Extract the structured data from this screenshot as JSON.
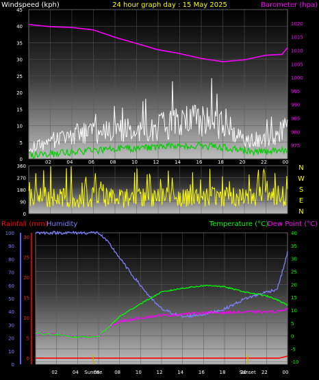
{
  "header": {
    "windspeed_label": "Windspeed (kph)",
    "title": "24 hour graph day : 15 May 2025",
    "barometer_label": "Barometer (hpa)"
  },
  "wind_dir_labels": [
    "N",
    "W",
    "S",
    "E",
    "N"
  ],
  "bottom_header": {
    "rainfall_label": "Rainfall (mm)",
    "humidity_label": "Humidity",
    "temperature_label": "Temperature (°C)",
    "dewpoint_label": "Dew Point (°C)"
  },
  "sun_labels": {
    "sunrise": "Sunrise",
    "sunset": "Sunset"
  },
  "colors": {
    "wind_avg": "#00d000",
    "wind_gust": "#ffffff",
    "barometer": "#ff00ff",
    "wind_dir": "#ffff00",
    "rain": "#ff0000",
    "humidity": "#8080ff",
    "temperature": "#00ff00",
    "dewpoint": "#ff00ff",
    "sun_marker": "#c8b400"
  },
  "chart_data": [
    {
      "type": "line",
      "x_ticks": [
        "02",
        "04",
        "06",
        "08",
        "10",
        "12",
        "14",
        "16",
        "18",
        "20",
        "22",
        "00"
      ],
      "left_axis": {
        "ticks": [
          0,
          5,
          10,
          15,
          20,
          25,
          30,
          35,
          40,
          45
        ],
        "ylim": [
          0,
          45
        ],
        "label": "Windspeed (kph)"
      },
      "right_axis": {
        "ticks": [
          975,
          980,
          985,
          990,
          995,
          1000,
          1005,
          1010,
          1015,
          1020
        ],
        "ylim": [
          970,
          1025
        ],
        "label": "Barometer (hpa)"
      },
      "series": [
        {
          "name": "Barometer (hpa)",
          "x": [
            0,
            2,
            4,
            6,
            8,
            10,
            12,
            14,
            16,
            18,
            20,
            22,
            23.5,
            24
          ],
          "values": [
            1019.5,
            1018.7,
            1018.4,
            1017.5,
            1014.8,
            1012.5,
            1010.2,
            1008.8,
            1007,
            1005.8,
            1006.5,
            1008.2,
            1008.5,
            1011
          ]
        }
      ],
      "wind_avg_profile": {
        "x": [
          0,
          4,
          8,
          12,
          14,
          16,
          18,
          20,
          22,
          24
        ],
        "values": [
          1,
          2,
          3,
          3.5,
          4,
          4,
          3.5,
          2.5,
          2,
          3
        ]
      },
      "wind_gust_profile": {
        "x": [
          0,
          4,
          8,
          12,
          14,
          16,
          18,
          20,
          22,
          24
        ],
        "values": [
          3,
          7,
          8,
          9,
          11,
          11,
          10,
          6,
          5,
          9
        ]
      }
    },
    {
      "type": "line",
      "y_ticks": [
        0,
        90,
        180,
        270,
        360
      ],
      "ylim": [
        0,
        360
      ],
      "wind_dir_profile": {
        "x": [
          0,
          24
        ],
        "values": [
          90,
          110
        ]
      }
    },
    {
      "type": "line",
      "x_ticks": [
        "02",
        "04",
        "06",
        "08",
        "10",
        "12",
        "14",
        "16",
        "18",
        "20",
        "22",
        "00"
      ],
      "humidity_axis": {
        "ticks": [
          0,
          10,
          20,
          30,
          40,
          50,
          60,
          70,
          80,
          90,
          100
        ],
        "ylim": [
          0,
          100
        ]
      },
      "rain_axis": {
        "ticks": [
          0,
          5,
          10,
          15,
          20,
          25,
          30
        ],
        "ylim": [
          -1.5,
          31
        ]
      },
      "temp_axis": {
        "ticks": [
          -10,
          -5,
          0,
          5,
          10,
          15,
          20,
          25,
          30,
          35,
          40
        ],
        "ylim": [
          -11,
          40
        ]
      },
      "series": [
        {
          "name": "Humidity",
          "x": [
            0,
            2,
            4,
            6,
            7,
            9,
            10,
            11,
            12,
            13,
            14,
            16,
            18,
            20,
            22,
            23,
            23.5,
            24
          ],
          "values": [
            100,
            100,
            100,
            100,
            92,
            70,
            60,
            50,
            42,
            39,
            36,
            38,
            42,
            50,
            55,
            57,
            70,
            85
          ]
        },
        {
          "name": "Temperature (°C)",
          "x": [
            0,
            2,
            4,
            5.5,
            6,
            7,
            8,
            10,
            12,
            14,
            16,
            17,
            18,
            20,
            22,
            23,
            24
          ],
          "values": [
            1,
            0.5,
            -0.5,
            -0.5,
            0,
            3.5,
            7.5,
            12.5,
            17,
            18.5,
            19.5,
            19.5,
            19,
            17,
            15.5,
            14,
            12
          ]
        },
        {
          "name": "Dew Point (°C)",
          "x": [
            0,
            2,
            4,
            5.5,
            6,
            7,
            8,
            10,
            12,
            13,
            14,
            16,
            18,
            20,
            22,
            23,
            24
          ],
          "values": [
            1,
            0.5,
            -0.5,
            -0.5,
            0,
            3.5,
            5.5,
            7,
            8,
            8,
            8.5,
            9,
            9,
            9.3,
            9.3,
            9.5,
            10.5
          ]
        },
        {
          "name": "Rainfall (mm)",
          "x": [
            0,
            23.2,
            24
          ],
          "values": [
            0,
            0,
            0.5
          ]
        }
      ],
      "sunrise_hour": 5.5,
      "sunset_hour": 20.2
    }
  ]
}
